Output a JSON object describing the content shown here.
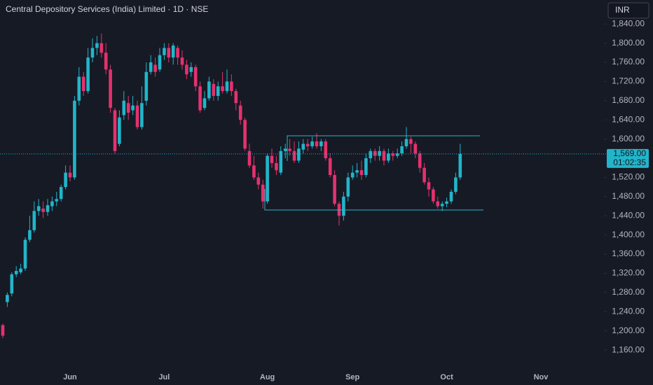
{
  "chart_data": {
    "type": "candlestick",
    "title": "Central Depository Services (India) Limited · 1D · NSE",
    "currency": "INR",
    "up_color": "#22b5c9",
    "down_color": "#e5316e",
    "categories": [
      null,
      null,
      null,
      null,
      null,
      null,
      null,
      null,
      null,
      null,
      null,
      null,
      null,
      null,
      null,
      "Jun",
      null,
      null,
      null,
      null,
      null,
      null,
      null,
      null,
      null,
      null,
      null,
      null,
      null,
      null,
      null,
      null,
      null,
      null,
      null,
      null,
      "Jul",
      null,
      null,
      null,
      null,
      null,
      null,
      null,
      null,
      null,
      null,
      null,
      null,
      null,
      null,
      null,
      null,
      null,
      null,
      null,
      null,
      null,
      null,
      "Aug",
      null,
      null,
      null,
      null,
      null,
      null,
      null,
      null,
      null,
      null,
      null,
      null,
      null,
      null,
      null,
      null,
      null,
      null,
      "Sep",
      null,
      null,
      null,
      null,
      null,
      null,
      null,
      null,
      null,
      null,
      null,
      null,
      null,
      null,
      null,
      null,
      null,
      null,
      null,
      null,
      "Oct",
      null,
      null,
      null,
      null,
      null,
      null,
      null,
      null,
      null,
      null,
      null,
      null,
      null,
      null,
      null,
      null,
      null,
      null,
      null,
      null,
      "Nov"
    ],
    "open": [
      1212,
      1260,
      1278,
      1318,
      1322,
      1330,
      1390,
      1410,
      1450,
      1455,
      1448,
      1460,
      1470,
      1475,
      1500,
      1530,
      1520,
      1680,
      1730,
      1700,
      1770,
      1790,
      1800,
      1780,
      1745,
      1660,
      1590,
      1650,
      1675,
      1660,
      1670,
      1625,
      1680,
      1740,
      1755,
      1745,
      1775,
      1790,
      1770,
      1790,
      1770,
      1755,
      1740,
      1750,
      1710,
      1665,
      1685,
      1715,
      1690,
      1710,
      1700,
      1720,
      1700,
      1670,
      1640,
      1575,
      1545,
      1520,
      1505,
      1470,
      1565,
      1550,
      1530,
      1575,
      1580,
      1575,
      1555,
      1578,
      1590,
      1585,
      1595,
      1585,
      1595,
      1560,
      1525,
      1465,
      1440,
      1480,
      1520,
      1530,
      1535,
      1525,
      1560,
      1575,
      1565,
      1575,
      1555,
      1570,
      1565,
      1570,
      1585,
      1600,
      1590,
      1570,
      1540,
      1510,
      1495,
      1470,
      1460,
      1465,
      1470,
      1490,
      1520,
      null,
      null,
      null,
      null,
      null,
      null,
      null,
      null,
      null,
      null,
      null,
      null,
      null,
      null,
      null,
      null,
      null,
      null
    ],
    "high": [
      1215,
      1280,
      1322,
      1335,
      1340,
      1395,
      1440,
      1470,
      1475,
      1470,
      1475,
      1480,
      1490,
      1505,
      1545,
      1545,
      1690,
      1750,
      1740,
      1790,
      1810,
      1815,
      1820,
      1800,
      1755,
      1665,
      1660,
      1700,
      1690,
      1690,
      1680,
      1710,
      1760,
      1775,
      1770,
      1790,
      1800,
      1800,
      1800,
      1795,
      1785,
      1765,
      1760,
      1755,
      1720,
      1700,
      1730,
      1725,
      1720,
      1740,
      1745,
      1735,
      1705,
      1680,
      1645,
      1590,
      1565,
      1530,
      1515,
      1570,
      1580,
      1565,
      1585,
      1590,
      1600,
      1595,
      1595,
      1600,
      1600,
      1605,
      1612,
      1600,
      1600,
      1570,
      1535,
      1470,
      1490,
      1530,
      1545,
      1550,
      1555,
      1570,
      1580,
      1580,
      1585,
      1580,
      1580,
      1575,
      1580,
      1595,
      1625,
      1605,
      1595,
      1575,
      1550,
      1520,
      1500,
      1480,
      1470,
      1478,
      1495,
      1530,
      1590,
      null,
      null,
      null,
      null,
      null,
      null,
      null,
      null,
      null,
      null,
      null,
      null,
      null,
      null,
      null,
      null,
      null,
      null
    ],
    "low": [
      1185,
      1250,
      1272,
      1312,
      1318,
      1325,
      1385,
      1405,
      1440,
      1435,
      1440,
      1450,
      1460,
      1470,
      1495,
      1512,
      1515,
      1670,
      1690,
      1695,
      1760,
      1775,
      1770,
      1735,
      1655,
      1570,
      1585,
      1640,
      1640,
      1650,
      1620,
      1620,
      1670,
      1735,
      1730,
      1740,
      1765,
      1760,
      1755,
      1755,
      1745,
      1725,
      1730,
      1700,
      1655,
      1660,
      1680,
      1680,
      1680,
      1695,
      1695,
      1690,
      1660,
      1630,
      1575,
      1540,
      1515,
      1495,
      1455,
      1465,
      1540,
      1525,
      1525,
      1560,
      1565,
      1550,
      1550,
      1570,
      1575,
      1580,
      1580,
      1575,
      1555,
      1520,
      1460,
      1420,
      1430,
      1470,
      1515,
      1520,
      1515,
      1520,
      1550,
      1555,
      1555,
      1545,
      1550,
      1555,
      1560,
      1565,
      1580,
      1570,
      1560,
      1530,
      1505,
      1480,
      1465,
      1455,
      1450,
      1458,
      1465,
      1485,
      1515,
      null,
      null,
      null,
      null,
      null,
      null,
      null,
      null,
      null,
      null,
      null,
      null,
      null,
      null,
      null,
      null,
      null,
      null
    ],
    "close": [
      1190,
      1275,
      1318,
      1325,
      1330,
      1390,
      1410,
      1450,
      1460,
      1448,
      1462,
      1470,
      1475,
      1500,
      1530,
      1520,
      1680,
      1730,
      1700,
      1770,
      1790,
      1800,
      1780,
      1745,
      1665,
      1575,
      1645,
      1680,
      1655,
      1670,
      1625,
      1675,
      1740,
      1760,
      1740,
      1775,
      1790,
      1770,
      1795,
      1770,
      1755,
      1735,
      1750,
      1710,
      1660,
      1685,
      1720,
      1690,
      1710,
      1700,
      1720,
      1700,
      1675,
      1640,
      1580,
      1545,
      1520,
      1505,
      1470,
      1565,
      1550,
      1535,
      1575,
      1580,
      1575,
      1555,
      1580,
      1590,
      1585,
      1595,
      1585,
      1595,
      1560,
      1525,
      1465,
      1440,
      1480,
      1520,
      1530,
      1535,
      1525,
      1560,
      1575,
      1565,
      1575,
      1555,
      1570,
      1565,
      1570,
      1585,
      1600,
      1590,
      1570,
      1540,
      1510,
      1495,
      1470,
      1460,
      1465,
      1470,
      1490,
      1520,
      1569,
      null,
      null,
      null,
      null,
      null,
      null,
      null,
      null,
      null,
      null,
      null,
      null,
      null,
      null,
      null,
      null,
      null,
      null
    ],
    "ylim": [
      1128,
      1890
    ],
    "yticks": [
      {
        "value": 1160,
        "label": "1,160.00"
      },
      {
        "value": 1200,
        "label": "1,200.00"
      },
      {
        "value": 1240,
        "label": "1,240.00"
      },
      {
        "value": 1280,
        "label": "1,280.00"
      },
      {
        "value": 1320,
        "label": "1,320.00"
      },
      {
        "value": 1360,
        "label": "1,360.00"
      },
      {
        "value": 1400,
        "label": "1,400.00"
      },
      {
        "value": 1440,
        "label": "1,440.00"
      },
      {
        "value": 1480,
        "label": "1,480.00"
      },
      {
        "value": 1520,
        "label": "1,520.00"
      },
      {
        "value": 1600,
        "label": "1,600.00"
      },
      {
        "value": 1640,
        "label": "1,640.00"
      },
      {
        "value": 1680,
        "label": "1,680.00"
      },
      {
        "value": 1720,
        "label": "1,720.00"
      },
      {
        "value": 1760,
        "label": "1,760.00"
      },
      {
        "value": 1800,
        "label": "1,800.00"
      },
      {
        "value": 1840,
        "label": "1,840.00"
      }
    ],
    "last_price": {
      "value": 1569,
      "label": "1,569.00"
    },
    "countdown": "01:02:35"
  }
}
